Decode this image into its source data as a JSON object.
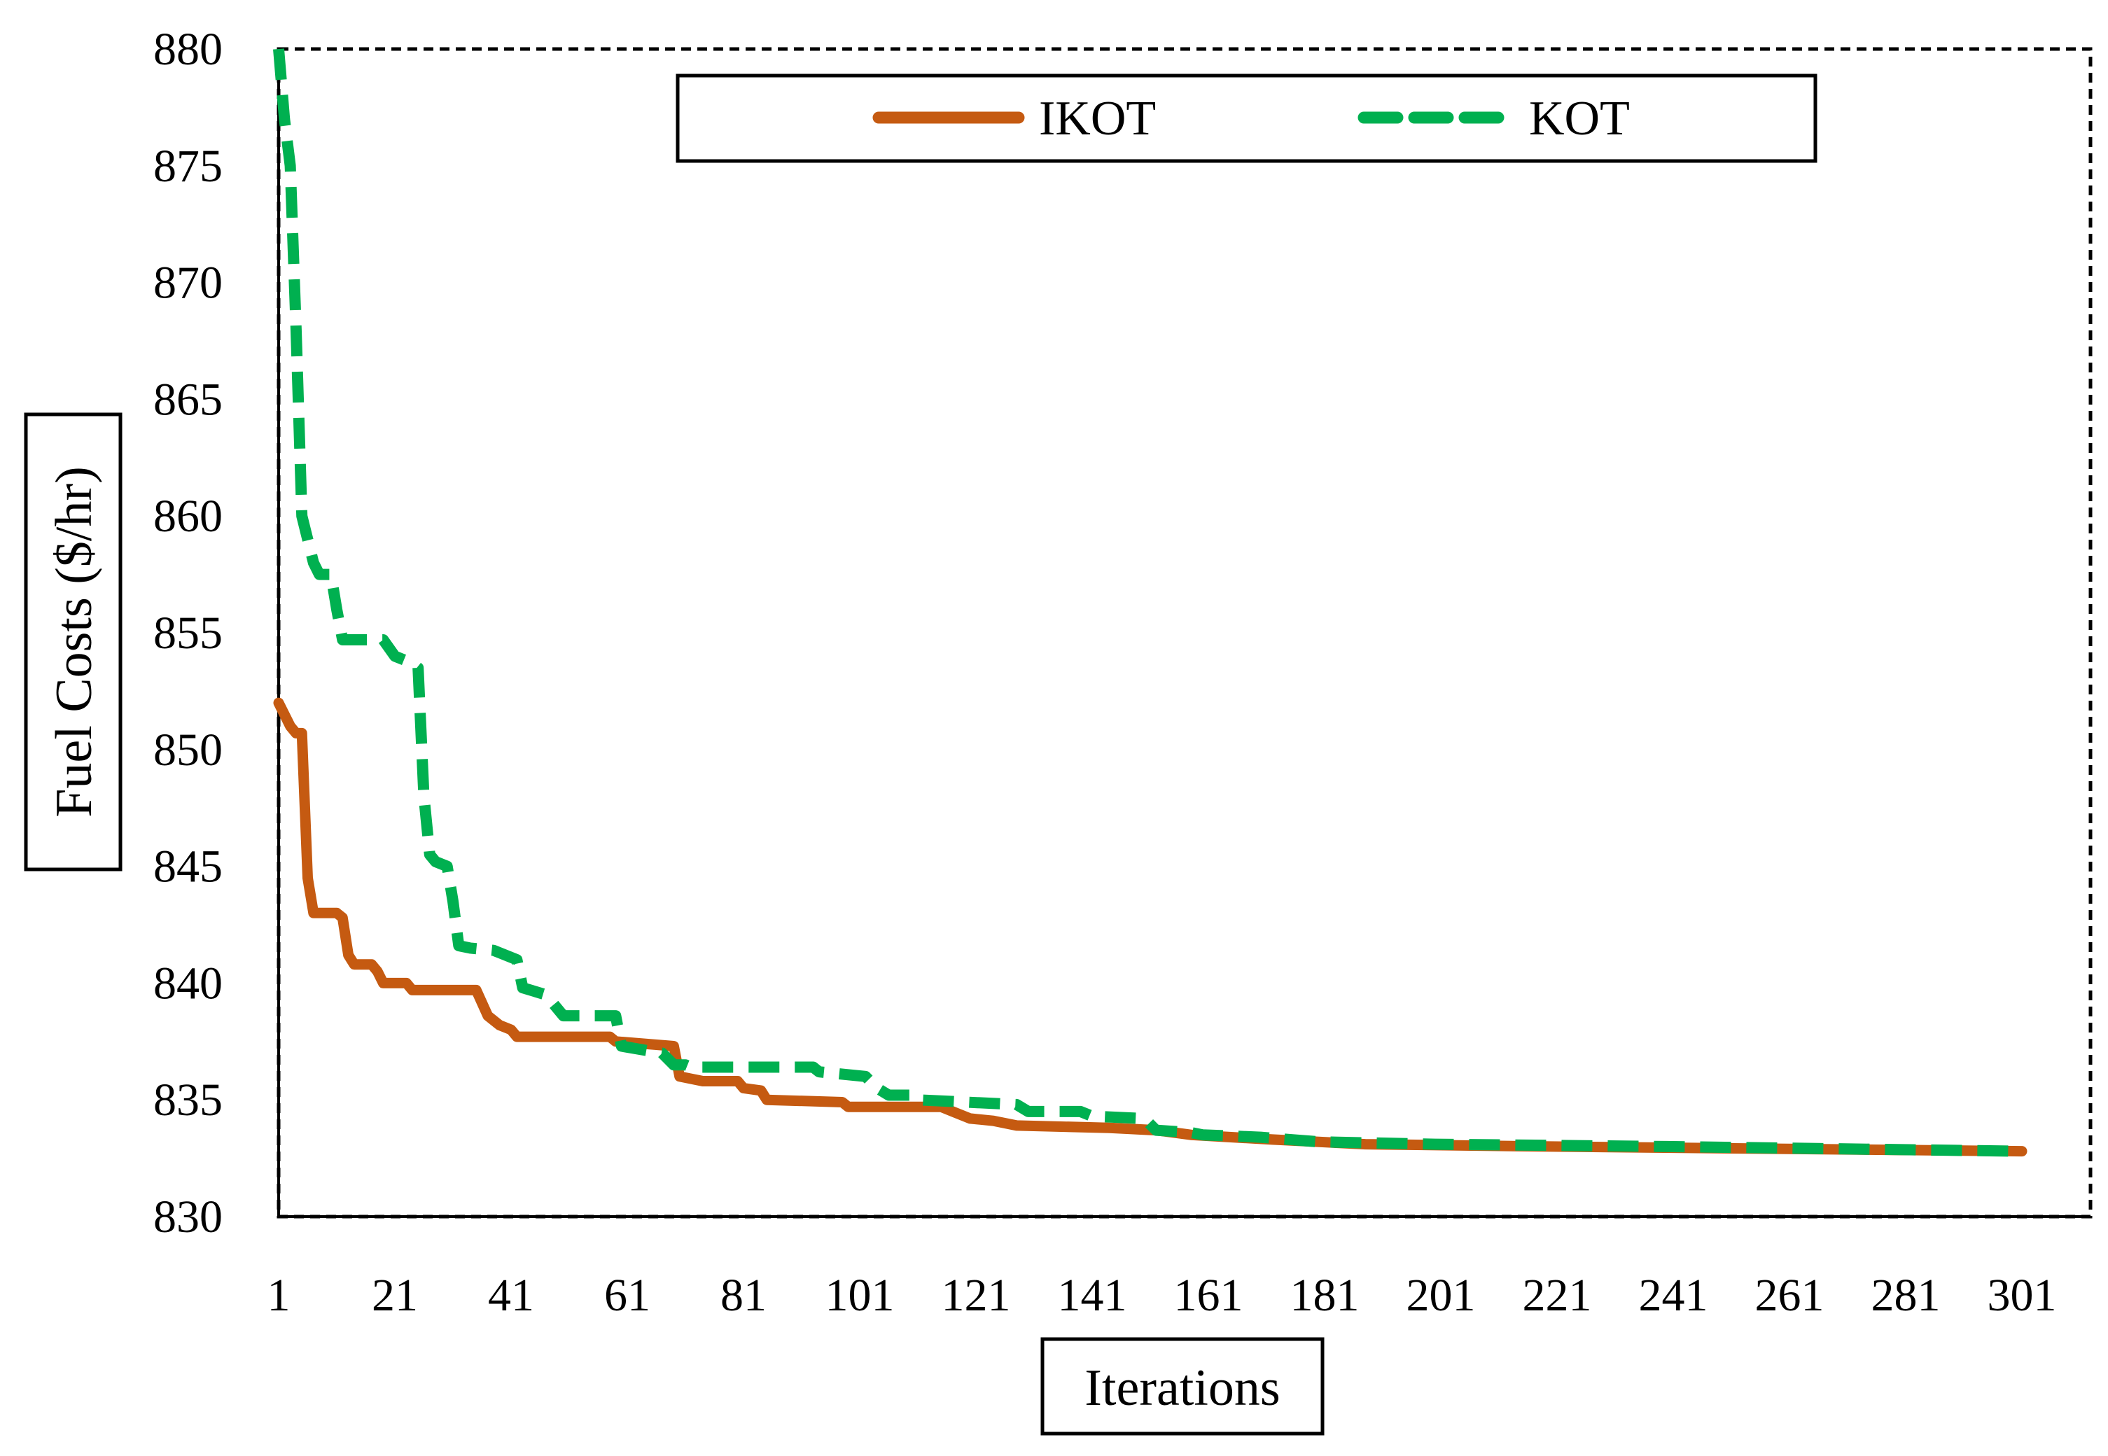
{
  "chart_data": {
    "type": "line",
    "title": "",
    "xlabel": "Iterations",
    "ylabel": "Fuel Costs ($/hr)",
    "xlim": [
      1,
      301
    ],
    "ylim": [
      830,
      880
    ],
    "x_ticks": [
      1,
      21,
      41,
      61,
      81,
      101,
      121,
      141,
      161,
      181,
      201,
      221,
      241,
      261,
      281,
      301
    ],
    "y_ticks": [
      830,
      835,
      840,
      845,
      850,
      855,
      860,
      865,
      870,
      875,
      880
    ],
    "grid": false,
    "legend_position": "top",
    "colors": {
      "IKOT": "#C55A11",
      "KOT": "#00B050",
      "frame": "#000000"
    },
    "series": [
      {
        "name": "IKOT",
        "style": "solid",
        "points": [
          [
            1,
            852
          ],
          [
            3,
            851
          ],
          [
            4,
            850.7
          ],
          [
            5,
            850.7
          ],
          [
            6,
            844.5
          ],
          [
            7,
            843
          ],
          [
            11,
            843
          ],
          [
            12,
            842.8
          ],
          [
            13,
            841.2
          ],
          [
            14,
            840.8
          ],
          [
            17,
            840.8
          ],
          [
            18,
            840.5
          ],
          [
            19,
            840
          ],
          [
            23,
            840
          ],
          [
            24,
            839.7
          ],
          [
            35,
            839.7
          ],
          [
            37,
            838.6
          ],
          [
            39,
            838.2
          ],
          [
            41,
            838
          ],
          [
            42,
            837.7
          ],
          [
            58,
            837.7
          ],
          [
            59,
            837.5
          ],
          [
            69,
            837.3
          ],
          [
            70,
            836
          ],
          [
            74,
            835.8
          ],
          [
            80,
            835.8
          ],
          [
            81,
            835.5
          ],
          [
            84,
            835.4
          ],
          [
            85,
            835
          ],
          [
            98,
            834.9
          ],
          [
            99,
            834.7
          ],
          [
            115,
            834.7
          ],
          [
            117,
            834.5
          ],
          [
            120,
            834.2
          ],
          [
            124,
            834.1
          ],
          [
            128,
            833.9
          ],
          [
            144,
            833.8
          ],
          [
            152,
            833.7
          ],
          [
            158,
            833.5
          ],
          [
            172,
            833.3
          ],
          [
            188,
            833.1
          ],
          [
            220,
            833.0
          ],
          [
            301,
            832.8
          ]
        ]
      },
      {
        "name": "KOT",
        "style": "dashed",
        "points": [
          [
            1,
            880
          ],
          [
            2,
            877
          ],
          [
            3,
            875
          ],
          [
            4,
            868
          ],
          [
            5,
            860
          ],
          [
            6,
            859
          ],
          [
            7,
            858
          ],
          [
            8,
            857.5
          ],
          [
            10,
            857.5
          ],
          [
            11,
            856
          ],
          [
            12,
            854.7
          ],
          [
            19,
            854.7
          ],
          [
            21,
            854
          ],
          [
            24,
            853.7
          ],
          [
            25,
            853.5
          ],
          [
            26,
            848
          ],
          [
            27,
            845.5
          ],
          [
            28,
            845.2
          ],
          [
            30,
            845
          ],
          [
            31,
            843.5
          ],
          [
            32,
            841.6
          ],
          [
            34,
            841.5
          ],
          [
            38,
            841.4
          ],
          [
            39,
            841.3
          ],
          [
            42,
            841
          ],
          [
            43,
            839.8
          ],
          [
            47,
            839.5
          ],
          [
            48,
            839.2
          ],
          [
            50,
            838.6
          ],
          [
            59,
            838.6
          ],
          [
            60,
            837.3
          ],
          [
            67,
            837
          ],
          [
            69,
            836.5
          ],
          [
            71,
            836.5
          ],
          [
            72,
            836.4
          ],
          [
            93,
            836.4
          ],
          [
            94,
            836.2
          ],
          [
            102,
            836
          ],
          [
            104,
            835.5
          ],
          [
            106,
            835.2
          ],
          [
            110,
            835.2
          ],
          [
            111,
            835
          ],
          [
            128,
            834.8
          ],
          [
            130,
            834.5
          ],
          [
            139,
            834.5
          ],
          [
            141,
            834.3
          ],
          [
            150,
            834.2
          ],
          [
            152,
            833.7
          ],
          [
            158,
            833.6
          ],
          [
            160,
            833.5
          ],
          [
            170,
            833.4
          ],
          [
            180,
            833.2
          ],
          [
            200,
            833.1
          ],
          [
            240,
            833.0
          ],
          [
            301,
            832.8
          ]
        ]
      }
    ]
  }
}
